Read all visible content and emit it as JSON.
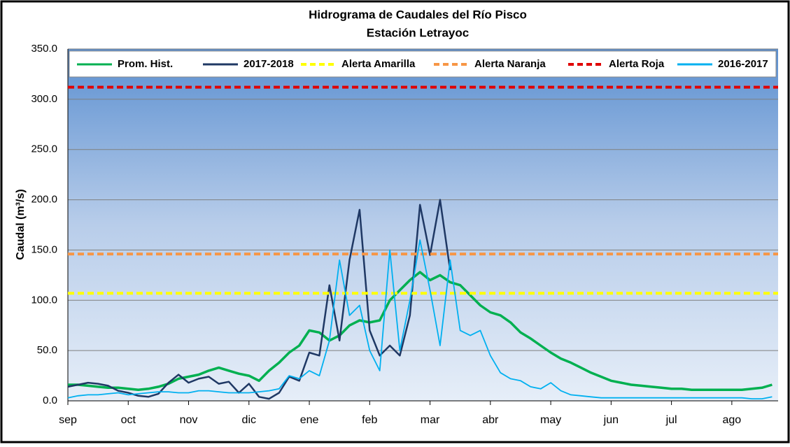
{
  "chart_data": {
    "type": "line",
    "title": "Hidrograma de Caudales del Río Pisco",
    "subtitle": "Estación Letrayoc",
    "y_label": "Caudal (m³/s)",
    "xlim": [
      0,
      353
    ],
    "ylim": [
      0,
      350
    ],
    "xticks": [
      {
        "value": 0,
        "label": "sep"
      },
      {
        "value": 30,
        "label": "oct"
      },
      {
        "value": 60,
        "label": "nov"
      },
      {
        "value": 90,
        "label": "dic"
      },
      {
        "value": 120,
        "label": "ene"
      },
      {
        "value": 150,
        "label": "feb"
      },
      {
        "value": 180,
        "label": "mar"
      },
      {
        "value": 210,
        "label": "abr"
      },
      {
        "value": 240,
        "label": "may"
      },
      {
        "value": 270,
        "label": "jun"
      },
      {
        "value": 300,
        "label": "jul"
      },
      {
        "value": 330,
        "label": "ago"
      }
    ],
    "yticks": [
      {
        "value": 0,
        "label": "0.0"
      },
      {
        "value": 50,
        "label": "50.0"
      },
      {
        "value": 100,
        "label": "100.0"
      },
      {
        "value": 150,
        "label": "150.0"
      },
      {
        "value": 200,
        "label": "200.0"
      },
      {
        "value": 250,
        "label": "250.0"
      },
      {
        "value": 300,
        "label": "300.0"
      },
      {
        "value": 350,
        "label": "350.0"
      }
    ],
    "grid": true,
    "x": [
      0,
      5,
      10,
      15,
      20,
      25,
      30,
      35,
      40,
      45,
      50,
      55,
      60,
      65,
      70,
      75,
      80,
      85,
      90,
      95,
      100,
      105,
      110,
      115,
      120,
      125,
      130,
      135,
      140,
      145,
      150,
      155,
      160,
      165,
      170,
      175,
      180,
      185,
      190,
      195,
      200,
      205,
      210,
      215,
      220,
      225,
      230,
      235,
      240,
      245,
      250,
      255,
      260,
      265,
      270,
      275,
      280,
      285,
      290,
      295,
      300,
      305,
      310,
      315,
      320,
      325,
      330,
      335,
      340,
      345,
      350
    ],
    "series": [
      {
        "name": "Prom. Hist.",
        "color": "#00b050",
        "values": [
          16,
          16,
          15,
          14,
          13,
          13,
          12,
          11,
          12,
          14,
          17,
          22,
          24,
          26,
          30,
          33,
          30,
          27,
          25,
          20,
          30,
          38,
          48,
          55,
          70,
          68,
          60,
          65,
          75,
          80,
          78,
          80,
          100,
          110,
          120,
          128,
          120,
          125,
          118,
          115,
          105,
          95,
          88,
          85,
          78,
          68,
          62,
          55,
          48,
          42,
          38,
          33,
          28,
          24,
          20,
          18,
          16,
          15,
          14,
          13,
          12,
          12,
          11,
          11,
          11,
          11,
          11,
          11,
          12,
          13,
          16
        ]
      },
      {
        "name": "2017-2018",
        "color": "#1f3864",
        "values": [
          14,
          16,
          18,
          17,
          15,
          10,
          8,
          5,
          4,
          7,
          18,
          26,
          18,
          22,
          24,
          17,
          19,
          8,
          17,
          4,
          2,
          8,
          24,
          20,
          48,
          45,
          115,
          60,
          140,
          190,
          70,
          45,
          55,
          45,
          85,
          195,
          145,
          200,
          130,
          null,
          null,
          null,
          null,
          null,
          null,
          null,
          null,
          null,
          null,
          null,
          null,
          null,
          null,
          null,
          null,
          null,
          null,
          null,
          null,
          null,
          null,
          null,
          null,
          null,
          null,
          null,
          null,
          null,
          null,
          null,
          null
        ]
      },
      {
        "name": "Alerta Amarilla",
        "color": "#ffff00",
        "level": 107
      },
      {
        "name": "Alerta Naranja",
        "color": "#f79646",
        "level": 146
      },
      {
        "name": "Alerta Roja",
        "color": "#e00000",
        "level": 312
      },
      {
        "name": "2016-2017",
        "color": "#00b0f0",
        "values": [
          3,
          5,
          6,
          6,
          7,
          8,
          6,
          7,
          8,
          9,
          9,
          8,
          8,
          10,
          10,
          9,
          8,
          8,
          8,
          9,
          10,
          12,
          25,
          22,
          30,
          25,
          60,
          140,
          85,
          95,
          50,
          30,
          150,
          50,
          100,
          160,
          110,
          55,
          140,
          70,
          65,
          70,
          45,
          28,
          22,
          20,
          14,
          12,
          18,
          10,
          6,
          5,
          4,
          3,
          3,
          3,
          3,
          3,
          3,
          3,
          3,
          3,
          3,
          3,
          3,
          3,
          3,
          3,
          2,
          2,
          4
        ]
      }
    ]
  }
}
